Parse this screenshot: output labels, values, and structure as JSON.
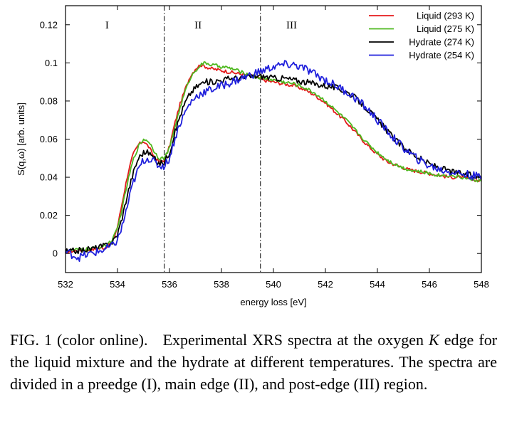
{
  "chart_data": {
    "type": "line",
    "xlabel": "energy loss [eV]",
    "ylabel": "S(q,ω) [arb. units]",
    "xlim": [
      532,
      548
    ],
    "ylim": [
      -0.01,
      0.13
    ],
    "xticks": [
      "532",
      "534",
      "536",
      "538",
      "540",
      "542",
      "544",
      "546",
      "548"
    ],
    "yticks": [
      "0",
      "0.02",
      "0.04",
      "0.06",
      "0.08",
      "0.1",
      "0.12"
    ],
    "legend_position": "top-right",
    "regions": [
      {
        "label": "I",
        "x": 533.6
      },
      {
        "label": "II",
        "x": 537.1
      },
      {
        "label": "III",
        "x": 540.7
      }
    ],
    "dividers": [
      535.8,
      539.5
    ],
    "series": [
      {
        "name": "Liquid (293 K)",
        "color": "#e41a1c",
        "x": [
          532,
          532.5,
          533,
          533.5,
          533.8,
          534,
          534.2,
          534.4,
          534.6,
          534.8,
          535,
          535.2,
          535.4,
          535.6,
          535.8,
          536,
          536.2,
          536.4,
          536.6,
          536.8,
          537,
          537.2,
          537.4,
          537.6,
          538,
          538.4,
          538.8,
          539.2,
          539.6,
          540,
          540.4,
          540.8,
          541.2,
          541.6,
          542,
          542.4,
          542.8,
          543.2,
          543.6,
          544,
          544.4,
          544.8,
          545.2,
          545.6,
          546,
          546.4,
          546.8,
          547.2,
          547.6,
          548
        ],
        "y": [
          0.001,
          0.0015,
          0.002,
          0.003,
          0.006,
          0.014,
          0.028,
          0.042,
          0.052,
          0.057,
          0.059,
          0.056,
          0.051,
          0.048,
          0.049,
          0.056,
          0.068,
          0.078,
          0.086,
          0.093,
          0.097,
          0.099,
          0.098,
          0.097,
          0.096,
          0.095,
          0.094,
          0.093,
          0.091,
          0.09,
          0.089,
          0.088,
          0.086,
          0.083,
          0.079,
          0.074,
          0.069,
          0.063,
          0.057,
          0.052,
          0.048,
          0.046,
          0.044,
          0.043,
          0.042,
          0.041,
          0.04,
          0.04,
          0.039,
          0.038
        ]
      },
      {
        "name": "Liquid (275 K)",
        "color": "#4db81e",
        "x": [
          532,
          532.5,
          533,
          533.5,
          533.8,
          534,
          534.2,
          534.4,
          534.6,
          534.8,
          535,
          535.2,
          535.4,
          535.6,
          535.8,
          536,
          536.2,
          536.4,
          536.6,
          536.8,
          537,
          537.2,
          537.4,
          537.6,
          538,
          538.4,
          538.8,
          539.2,
          539.6,
          540,
          540.4,
          540.8,
          541.2,
          541.6,
          542,
          542.4,
          542.8,
          543.2,
          543.6,
          544,
          544.4,
          544.8,
          545.2,
          545.6,
          546,
          546.4,
          546.8,
          547.2,
          547.6,
          548
        ],
        "y": [
          0.0015,
          0.002,
          0.0025,
          0.004,
          0.007,
          0.013,
          0.025,
          0.038,
          0.049,
          0.056,
          0.06,
          0.059,
          0.054,
          0.05,
          0.05,
          0.055,
          0.066,
          0.076,
          0.085,
          0.092,
          0.096,
          0.099,
          0.1,
          0.099,
          0.098,
          0.097,
          0.095,
          0.093,
          0.092,
          0.091,
          0.09,
          0.089,
          0.087,
          0.084,
          0.08,
          0.075,
          0.07,
          0.064,
          0.058,
          0.053,
          0.049,
          0.046,
          0.044,
          0.043,
          0.042,
          0.041,
          0.041,
          0.04,
          0.039,
          0.038
        ]
      },
      {
        "name": "Hydrate (274 K)",
        "color": "#000000",
        "x": [
          532,
          532.5,
          533,
          533.5,
          533.8,
          534,
          534.2,
          534.4,
          534.6,
          534.8,
          535,
          535.2,
          535.4,
          535.6,
          535.8,
          536,
          536.2,
          536.4,
          536.6,
          536.8,
          537,
          537.2,
          537.4,
          537.6,
          538,
          538.4,
          538.8,
          539.2,
          539.6,
          540,
          540.4,
          540.8,
          541.2,
          541.6,
          542,
          542.4,
          542.8,
          543.2,
          543.6,
          544,
          544.4,
          544.8,
          545.2,
          545.6,
          546,
          546.4,
          546.8,
          547.2,
          547.6,
          548
        ],
        "y": [
          0.001,
          0.0015,
          0.0025,
          0.004,
          0.006,
          0.01,
          0.02,
          0.032,
          0.042,
          0.05,
          0.053,
          0.053,
          0.05,
          0.047,
          0.048,
          0.053,
          0.063,
          0.072,
          0.079,
          0.084,
          0.087,
          0.089,
          0.09,
          0.09,
          0.091,
          0.092,
          0.092,
          0.093,
          0.093,
          0.092,
          0.092,
          0.091,
          0.09,
          0.089,
          0.088,
          0.087,
          0.085,
          0.081,
          0.076,
          0.07,
          0.064,
          0.058,
          0.054,
          0.05,
          0.047,
          0.045,
          0.043,
          0.042,
          0.041,
          0.04
        ]
      },
      {
        "name": "Hydrate (254 K)",
        "color": "#1f1fdc",
        "x": [
          532,
          532.5,
          533,
          533.5,
          533.8,
          534,
          534.2,
          534.4,
          534.6,
          534.8,
          535,
          535.2,
          535.4,
          535.6,
          535.8,
          536,
          536.2,
          536.4,
          536.6,
          536.8,
          537,
          537.2,
          537.4,
          537.6,
          538,
          538.4,
          538.8,
          539.2,
          539.6,
          540,
          540.4,
          540.8,
          541.2,
          541.6,
          542,
          542.4,
          542.8,
          543.2,
          543.6,
          544,
          544.4,
          544.8,
          545.2,
          545.6,
          546,
          546.4,
          546.8,
          547.2,
          547.6,
          548
        ],
        "y": [
          0.001,
          -0.002,
          0.0,
          0.002,
          0.004,
          0.007,
          0.015,
          0.026,
          0.037,
          0.044,
          0.049,
          0.05,
          0.048,
          0.046,
          0.046,
          0.05,
          0.06,
          0.068,
          0.074,
          0.079,
          0.082,
          0.084,
          0.085,
          0.086,
          0.088,
          0.09,
          0.092,
          0.094,
          0.096,
          0.098,
          0.099,
          0.099,
          0.097,
          0.094,
          0.091,
          0.088,
          0.085,
          0.081,
          0.076,
          0.07,
          0.064,
          0.058,
          0.053,
          0.049,
          0.046,
          0.044,
          0.043,
          0.042,
          0.041,
          0.04
        ]
      }
    ]
  },
  "caption": {
    "label": "FIG. 1 (color online).",
    "text_before_k": "Experimental XRS spectra at the oxygen",
    "k": "K",
    "text_after_k": "edge for the liquid mixture and the hydrate at different temperatures. The spectra are divided in a preedge (I), main edge (II), and post-edge (III) region."
  }
}
